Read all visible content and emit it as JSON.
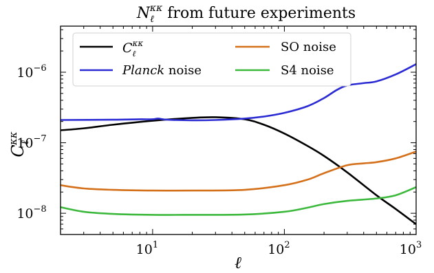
{
  "chart_data": {
    "type": "line",
    "title": "N_ℓ^κκ from future experiments",
    "title_main": "N",
    "title_sub": "ℓ",
    "title_sup": "κκ",
    "title_rest": " from future experiments",
    "xlabel": "ℓ",
    "ylabel_main": "C",
    "ylabel_sub": "ℓ",
    "ylabel_sup": "κκ",
    "x_scale": "log",
    "y_scale": "log",
    "xlim": [
      2,
      1000
    ],
    "ylim": [
      5e-09,
      4.5e-06
    ],
    "x_ticks": [
      {
        "value": 10,
        "base": "10",
        "exp": "1"
      },
      {
        "value": 100,
        "base": "10",
        "exp": "2"
      },
      {
        "value": 1000,
        "base": "10",
        "exp": "3"
      }
    ],
    "y_ticks": [
      {
        "value": 1e-08,
        "base": "10",
        "exp": "−8"
      },
      {
        "value": 1e-07,
        "base": "10",
        "exp": "−7"
      },
      {
        "value": 1e-06,
        "base": "10",
        "exp": "−6"
      }
    ],
    "grid": false,
    "legend_position": "top-left",
    "series": [
      {
        "id": "signal",
        "legend_main": "C",
        "legend_sub": "ℓ",
        "legend_sup": "κκ",
        "color": "#000000",
        "x": [
          2,
          3,
          5,
          10,
          20,
          30,
          50,
          70,
          100,
          150,
          200,
          300,
          500,
          700,
          1000
        ],
        "y": [
          1.5e-07,
          1.6e-07,
          1.8e-07,
          2.05e-07,
          2.25e-07,
          2.3e-07,
          2.15e-07,
          1.8e-07,
          1.35e-07,
          9e-08,
          6.5e-08,
          3.8e-08,
          1.8e-08,
          1.15e-08,
          7e-09
        ]
      },
      {
        "id": "planck",
        "legend_main": "Planck",
        "legend_rest": " noise",
        "color": "#2b2bd4",
        "x": [
          2,
          5,
          8,
          10,
          11,
          13,
          20,
          30,
          50,
          70,
          100,
          150,
          200,
          250,
          300,
          400,
          500,
          700,
          1000
        ],
        "y": [
          2.1e-07,
          2.12e-07,
          2.15e-07,
          2.15e-07,
          2.2e-07,
          2.12e-07,
          2.08e-07,
          2.1e-07,
          2.2e-07,
          2.35e-07,
          2.65e-07,
          3.3e-07,
          4.3e-07,
          5.6e-07,
          6.5e-07,
          7e-07,
          7.4e-07,
          9.3e-07,
          1.3e-06
        ]
      },
      {
        "id": "so",
        "legend_main": "SO noise",
        "color": "#d4701a",
        "x": [
          2,
          3,
          5,
          10,
          20,
          50,
          100,
          150,
          200,
          300,
          400,
          500,
          700,
          1000
        ],
        "y": [
          2.5e-08,
          2.25e-08,
          2.15e-08,
          2.1e-08,
          2.1e-08,
          2.15e-08,
          2.5e-08,
          3e-08,
          3.7e-08,
          4.8e-08,
          5.1e-08,
          5.3e-08,
          6e-08,
          7.5e-08
        ]
      },
      {
        "id": "s4",
        "legend_main": "S4 noise",
        "color": "#3cb93c",
        "x": [
          2,
          3,
          5,
          10,
          20,
          50,
          100,
          150,
          200,
          300,
          500,
          700,
          1000
        ],
        "y": [
          1.22e-08,
          1.05e-08,
          9.8e-09,
          9.5e-09,
          9.5e-09,
          9.6e-09,
          1.05e-08,
          1.2e-08,
          1.35e-08,
          1.5e-08,
          1.62e-08,
          1.8e-08,
          2.35e-08
        ]
      }
    ]
  }
}
